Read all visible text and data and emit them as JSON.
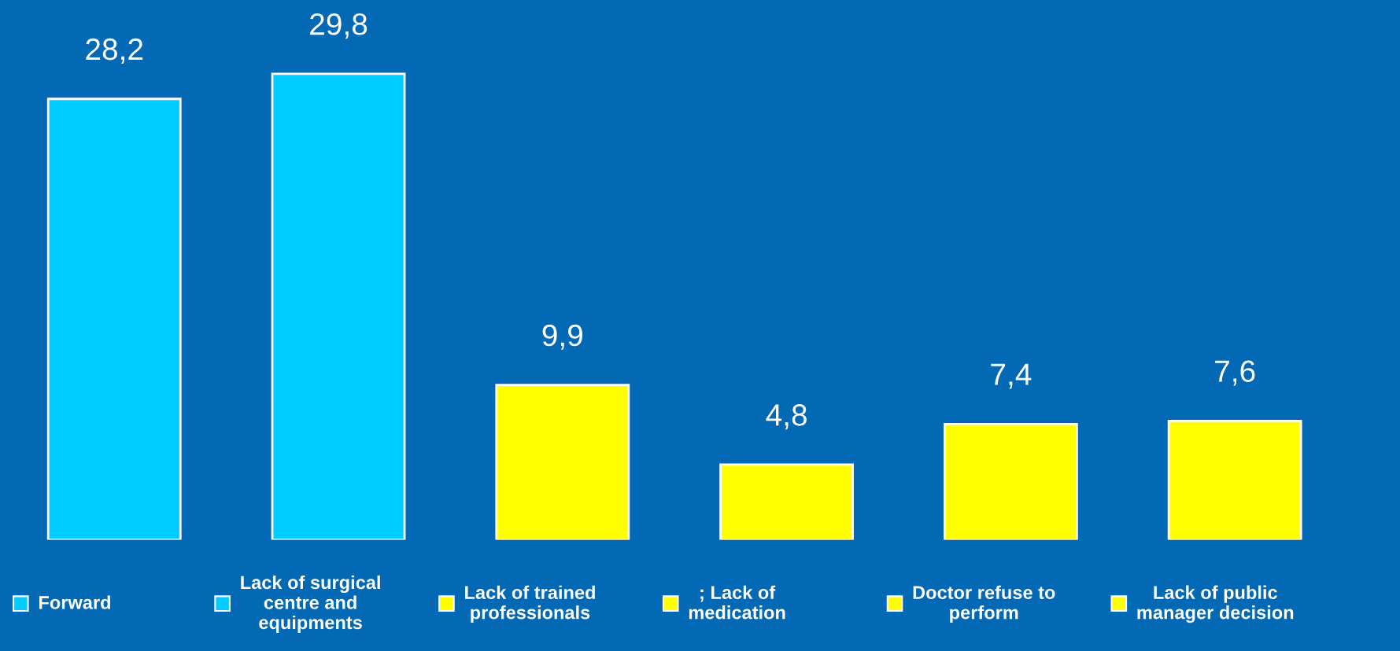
{
  "chart_data": {
    "type": "bar",
    "categories": [
      "Forward",
      "Lack of surgical\ncentre and\nequipments",
      "Lack of trained\nprofessionals",
      "; Lack of\nmedication",
      "Doctor refuse to\nperform",
      "Lack of public\nmanager decision"
    ],
    "values": [
      28.2,
      29.8,
      9.9,
      4.8,
      7.4,
      7.6
    ],
    "value_labels": [
      "28,2",
      "29,8",
      "9,9",
      "4,8",
      "7,4",
      "7,6"
    ],
    "colors": [
      "#00ccff",
      "#00ccff",
      "#ffff00",
      "#ffff00",
      "#ffff00",
      "#ffff00"
    ],
    "legend": false
  }
}
